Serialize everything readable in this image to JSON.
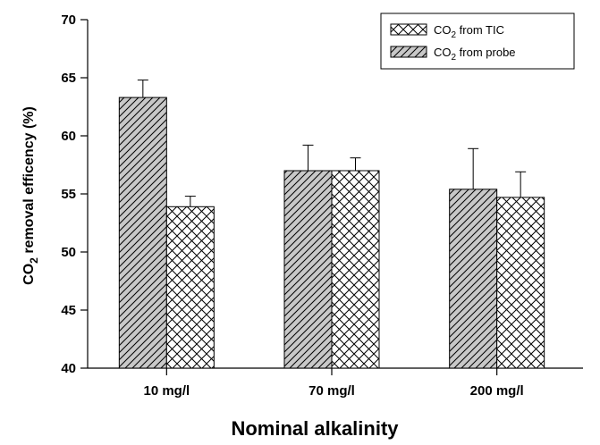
{
  "chart_data": {
    "type": "bar",
    "categories": [
      "10 mg/l",
      "70 mg/l",
      "200 mg/l"
    ],
    "series": [
      {
        "name": "CO2 from probe",
        "legend_main": "CO",
        "legend_sub": "2",
        "legend_rest": " from probe",
        "pattern": "diagonal-hatch",
        "fill": "#c8c8c8",
        "values": [
          63.3,
          57.0,
          55.4
        ],
        "errors": [
          1.5,
          2.2,
          3.5
        ]
      },
      {
        "name": "CO2 from TIC",
        "legend_main": "CO",
        "legend_sub": "2",
        "legend_rest": " from TIC",
        "pattern": "crosshatch",
        "fill": "#ffffff",
        "values": [
          53.9,
          57.0,
          54.7
        ],
        "errors": [
          0.9,
          1.1,
          2.2
        ]
      }
    ],
    "legend_order": [
      1,
      0
    ],
    "legend_position": "top-right",
    "xlabel": "Nominal alkalinity",
    "ylabel_main": "CO",
    "ylabel_sub": "2",
    "ylabel_rest": " removal efficency (%)",
    "ylim": [
      40,
      70
    ],
    "yticks": [
      40,
      45,
      50,
      55,
      60,
      65,
      70
    ],
    "grid": false
  }
}
